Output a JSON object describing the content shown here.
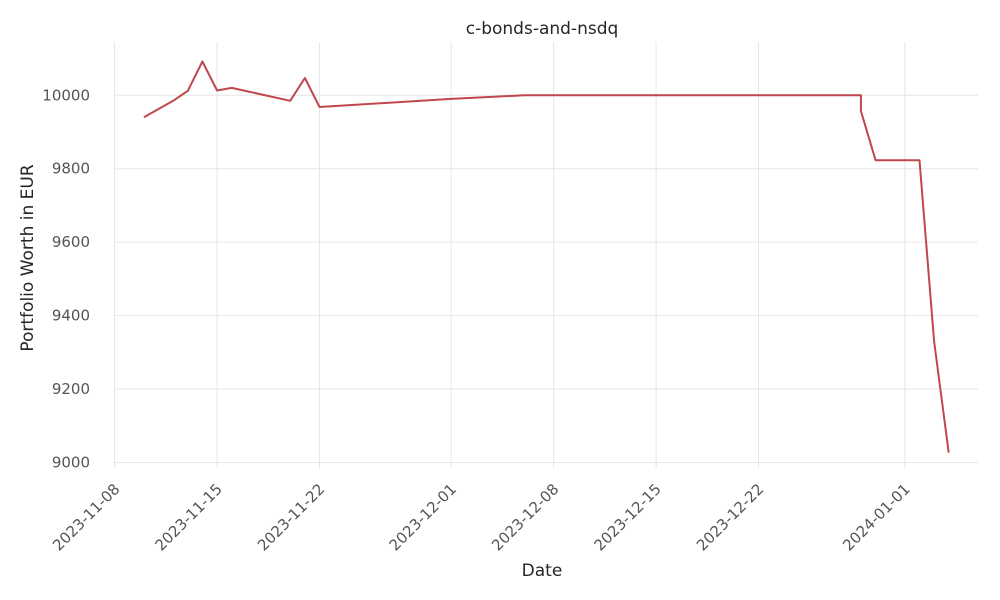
{
  "chart_data": {
    "type": "line",
    "title": "c-bonds-and-nsdq",
    "xlabel": "Date",
    "ylabel": "Portfolio Worth in EUR",
    "xlim": [
      "2023-11-07",
      "2024-01-06"
    ],
    "ylim": [
      8985,
      10145
    ],
    "grid": true,
    "x_ticks": [
      "2023-11-08",
      "2023-11-15",
      "2023-11-22",
      "2023-12-01",
      "2023-12-08",
      "2023-12-15",
      "2023-12-22",
      "2024-01-01"
    ],
    "y_ticks": [
      9000,
      9200,
      9400,
      9600,
      9800,
      10000
    ],
    "series": [
      {
        "color": "#c0474c",
        "points": [
          [
            "2023-11-10",
            9940
          ],
          [
            "2023-11-12",
            9985
          ],
          [
            "2023-11-13",
            10012
          ],
          [
            "2023-11-14",
            10092
          ],
          [
            "2023-11-15",
            10013
          ],
          [
            "2023-11-16",
            10020
          ],
          [
            "2023-11-20",
            9985
          ],
          [
            "2023-11-21",
            10047
          ],
          [
            "2023-11-22",
            9968
          ],
          [
            "2023-12-01",
            9990
          ],
          [
            "2023-12-06",
            10000
          ],
          [
            "2023-12-29",
            10000
          ],
          [
            "2023-12-29",
            9957
          ],
          [
            "2023-12-30",
            9823
          ],
          [
            "2024-01-02",
            9823
          ],
          [
            "2024-01-03",
            9330
          ],
          [
            "2024-01-04",
            9027
          ]
        ]
      }
    ]
  }
}
